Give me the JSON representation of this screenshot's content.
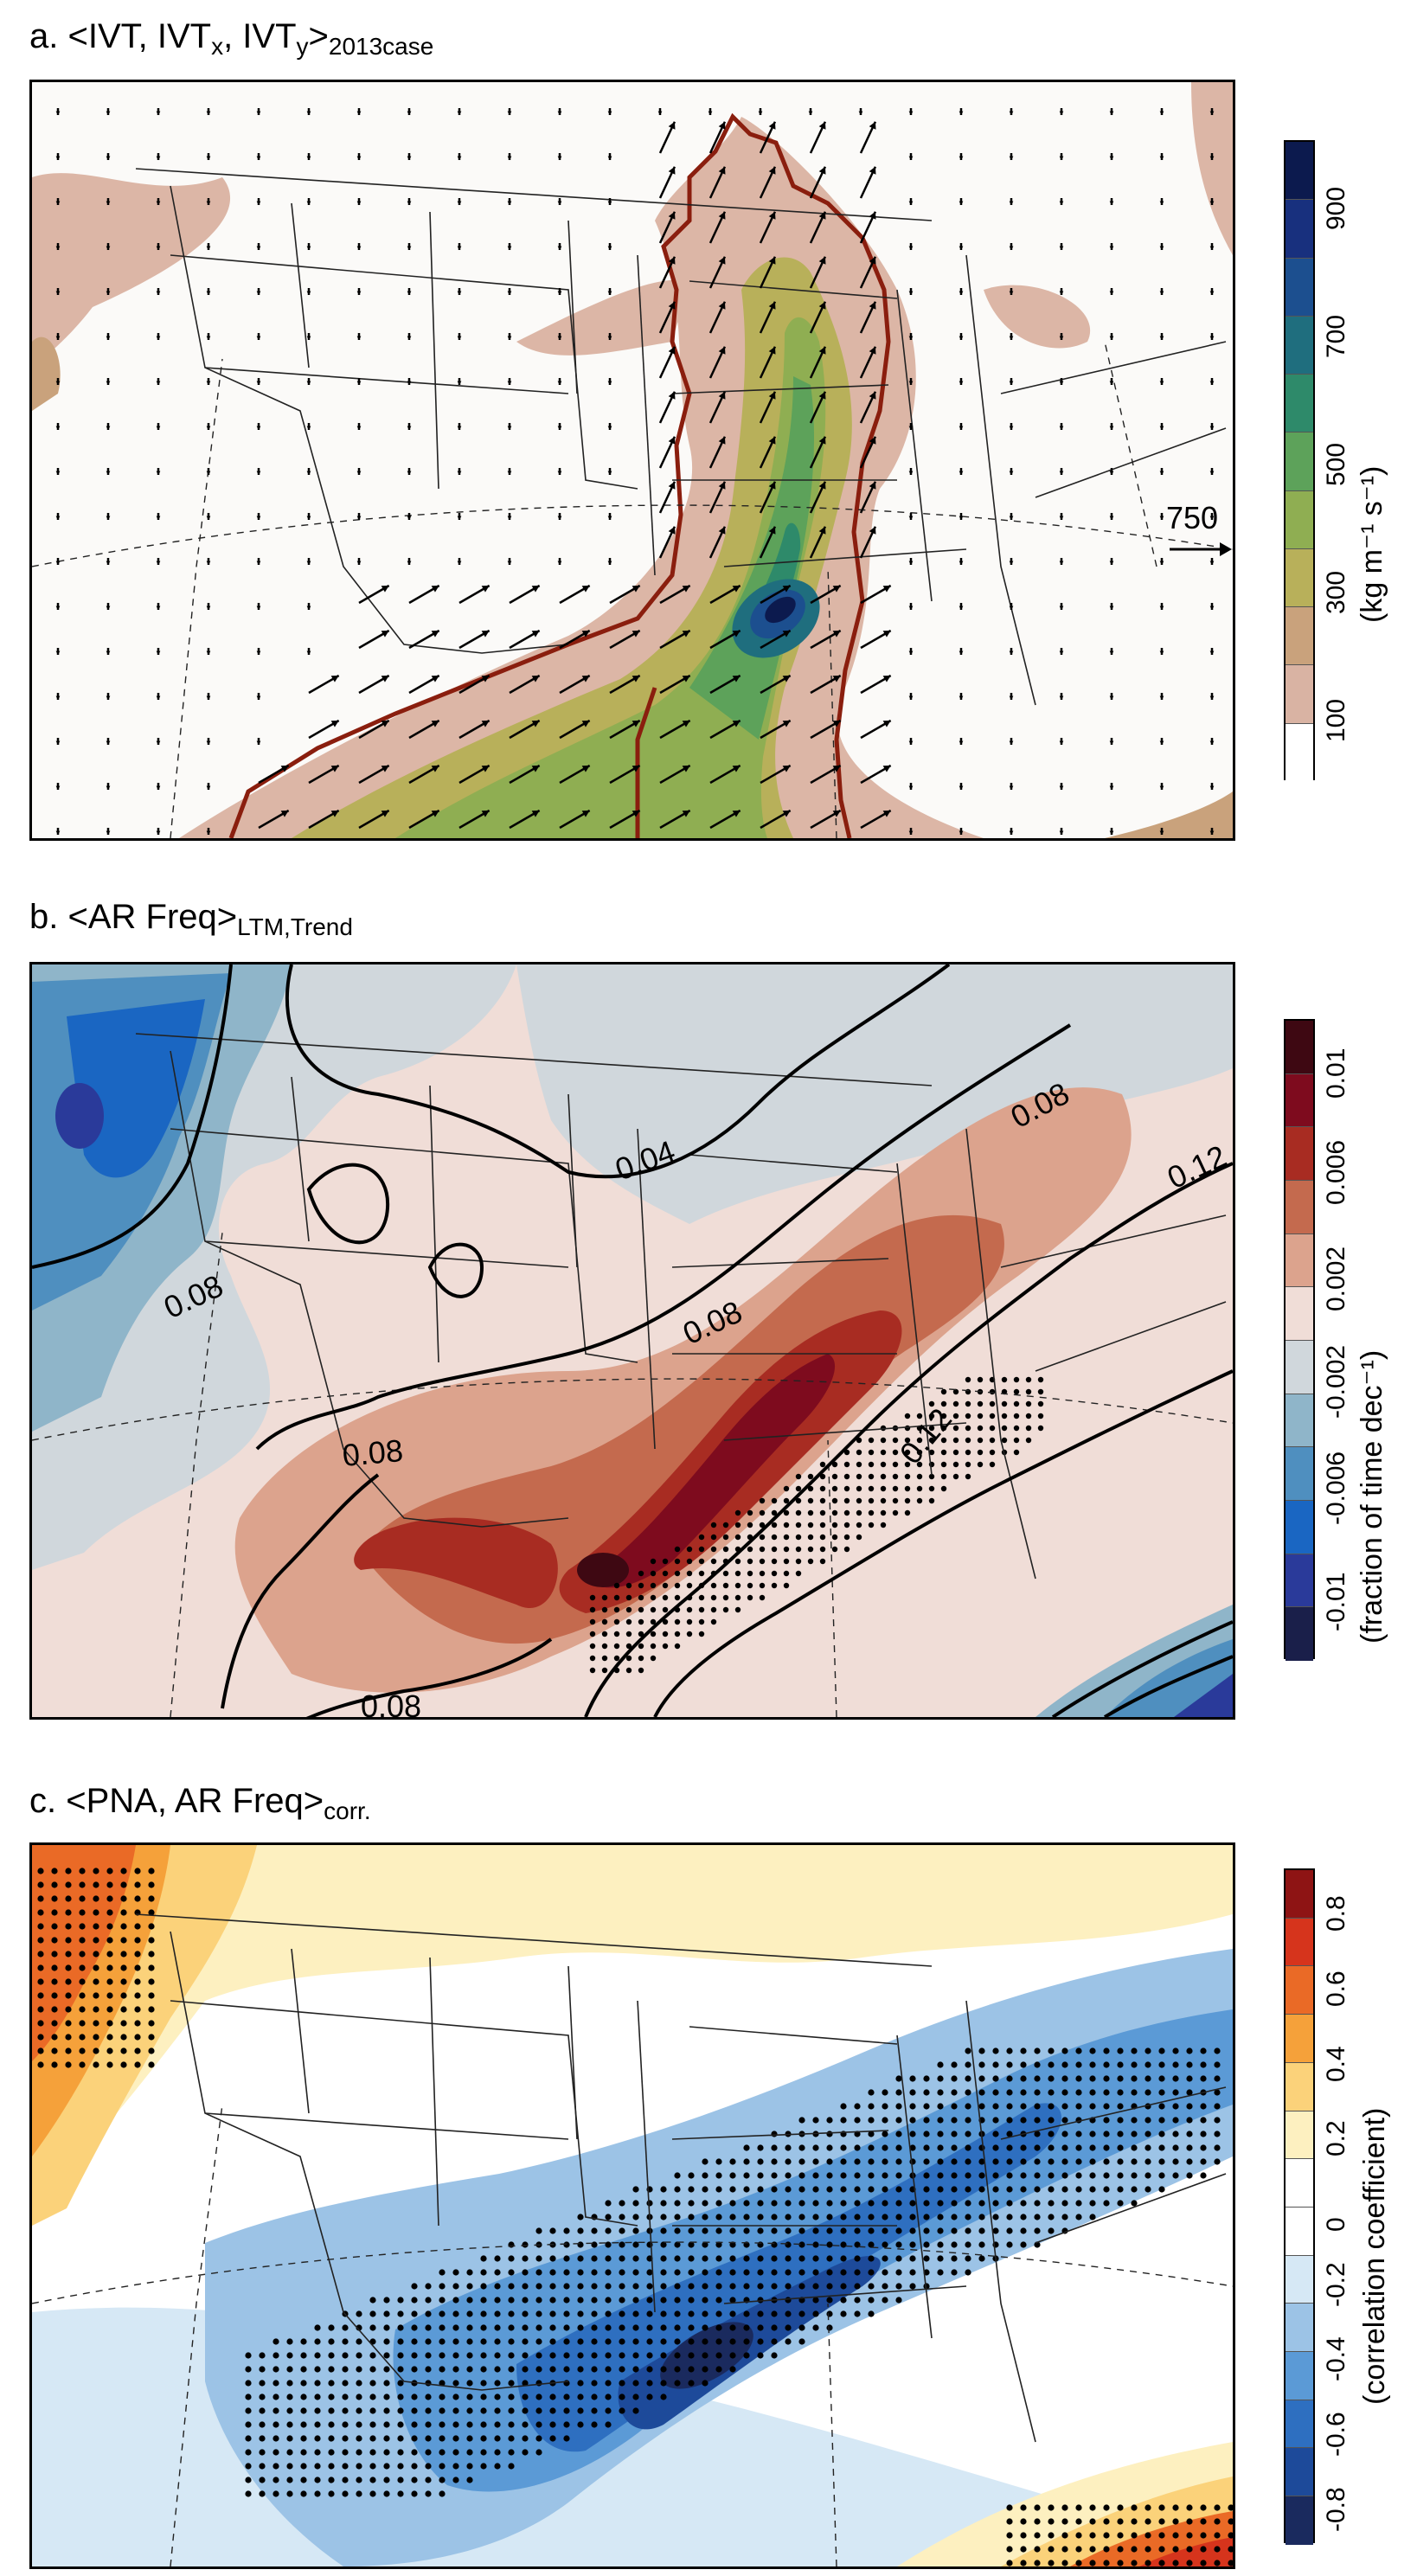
{
  "panels": [
    {
      "title_prefix": "a. <IVT, IVT",
      "title_sub1": "x",
      "title_mid": ", IVT",
      "title_sub2": "y",
      "title_close": ">",
      "title_sub3": "2013case",
      "colorbar": {
        "ticks": [
          "100",
          "300",
          "500",
          "700",
          "900"
        ],
        "title": "(kg m⁻¹ s⁻¹)",
        "colors": [
          "#ffffff",
          "#d9b3a3",
          "#c9a27c",
          "#b8b05a",
          "#8fae52",
          "#5da25a",
          "#2e8a6a",
          "#1f6e7e",
          "#1c4f8f",
          "#18307e",
          "#0c1a4e"
        ]
      },
      "reference_vector": "750"
    },
    {
      "title_prefix": "b. <AR Freq>",
      "title_sub1": "LTM,Trend",
      "contour_labels": [
        "0.04",
        "0.08",
        "0.08",
        "0.08",
        "0.08",
        "0.08",
        "0.12",
        "0.12"
      ],
      "colorbar": {
        "ticks": [
          "-0.01",
          "-0.006",
          "-0.002",
          "0.002",
          "0.006",
          "0.01"
        ],
        "title": "(fraction of time dec⁻¹)",
        "colors": [
          "#1a1f4a",
          "#2a3a9a",
          "#1a66c2",
          "#4f8fbf",
          "#8fb5c9",
          "#d0d7dc",
          "#f0ddd7",
          "#dca38d",
          "#c46a4e",
          "#a82c22",
          "#7e0b1e",
          "#3e0812"
        ]
      }
    },
    {
      "title_prefix": "c. <PNA, AR Freq>",
      "title_sub1": "corr.",
      "colorbar": {
        "ticks": [
          "-0.8",
          "-0.6",
          "-0.4",
          "-0.2",
          "0",
          "0.2",
          "0.4",
          "0.6",
          "0.8"
        ],
        "title": "(correlation coefficient)",
        "colors": [
          "#1a2a5e",
          "#1d4a9a",
          "#2e6fc0",
          "#5b9ad6",
          "#9cc3e6",
          "#d6e8f5",
          "#ffffff",
          "#ffffff",
          "#fdf0c0",
          "#fbd27a",
          "#f5a13a",
          "#ea6a26",
          "#d6341c",
          "#8e1414"
        ]
      }
    }
  ]
}
